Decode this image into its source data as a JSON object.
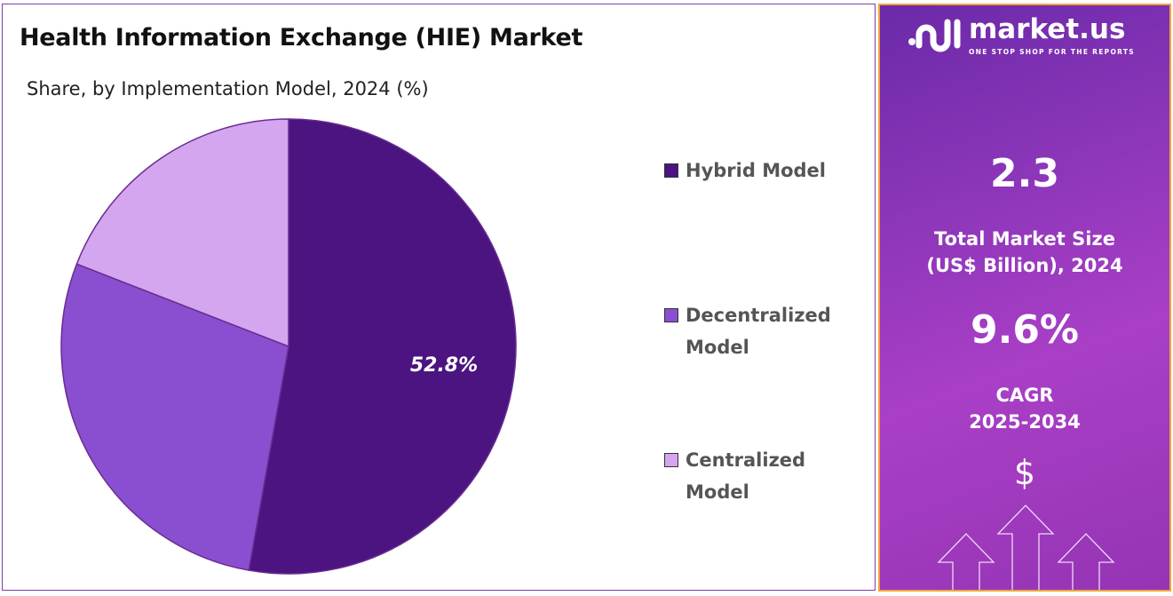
{
  "chart_data": {
    "type": "pie",
    "title": "Health Information Exchange (HIE) Market",
    "subtitle": "Share, by Implementation Model, 2024 (%)",
    "categories": [
      "Hybrid Model",
      "Decentralized Model",
      "Centralized Model"
    ],
    "values": [
      52.8,
      28.1,
      19.1
    ],
    "colors": [
      "#4b1480",
      "#8a4fd0",
      "#d3a6ef"
    ],
    "data_labels": [
      "52.8%",
      "",
      ""
    ],
    "legend_lines": [
      [
        "Hybrid Model"
      ],
      [
        "Decentralized",
        "Model"
      ],
      [
        "Centralized",
        "Model"
      ]
    ],
    "legend_placement": "right"
  },
  "panel": {
    "brand": "market.us",
    "tagline": "ONE STOP SHOP FOR THE REPORTS",
    "market_size": "2.3",
    "market_size_label_1": "Total Market Size",
    "market_size_label_2": "(US$ Billion), 2024",
    "cagr": "9.6%",
    "cagr_label_1": "CAGR",
    "cagr_label_2": "2025-2034",
    "dollar": "$",
    "icon": "growth-arrows-icon"
  }
}
